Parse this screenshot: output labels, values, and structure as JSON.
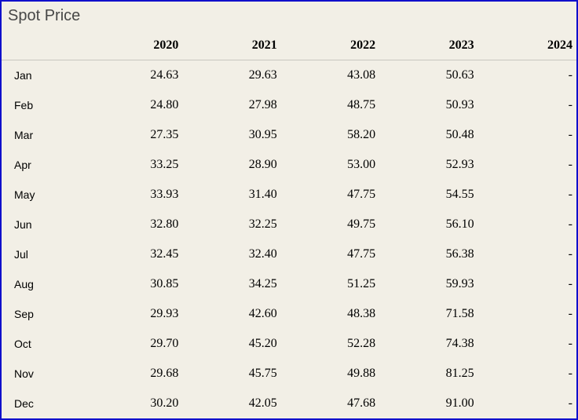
{
  "title": "Spot Price",
  "colors": {
    "border": "#0f0fcb",
    "background": "#f2efe6",
    "title_text": "#474747",
    "separator": "#c8c6bf",
    "cell_text": "#000000"
  },
  "table": {
    "columns": [
      "",
      "2020",
      "2021",
      "2022",
      "2023",
      "2024"
    ],
    "rows": [
      {
        "month": "Jan",
        "values": [
          "24.63",
          "29.63",
          "43.08",
          "50.63",
          "-"
        ]
      },
      {
        "month": "Feb",
        "values": [
          "24.80",
          "27.98",
          "48.75",
          "50.93",
          "-"
        ]
      },
      {
        "month": "Mar",
        "values": [
          "27.35",
          "30.95",
          "58.20",
          "50.48",
          "-"
        ]
      },
      {
        "month": "Apr",
        "values": [
          "33.25",
          "28.90",
          "53.00",
          "52.93",
          "-"
        ]
      },
      {
        "month": "May",
        "values": [
          "33.93",
          "31.40",
          "47.75",
          "54.55",
          "-"
        ]
      },
      {
        "month": "Jun",
        "values": [
          "32.80",
          "32.25",
          "49.75",
          "56.10",
          "-"
        ]
      },
      {
        "month": "Jul",
        "values": [
          "32.45",
          "32.40",
          "47.75",
          "56.38",
          "-"
        ]
      },
      {
        "month": "Aug",
        "values": [
          "30.85",
          "34.25",
          "51.25",
          "59.93",
          "-"
        ]
      },
      {
        "month": "Sep",
        "values": [
          "29.93",
          "42.60",
          "48.38",
          "71.58",
          "-"
        ]
      },
      {
        "month": "Oct",
        "values": [
          "29.70",
          "45.20",
          "52.28",
          "74.38",
          "-"
        ]
      },
      {
        "month": "Nov",
        "values": [
          "29.68",
          "45.75",
          "49.88",
          "81.25",
          "-"
        ]
      },
      {
        "month": "Dec",
        "values": [
          "30.20",
          "42.05",
          "47.68",
          "91.00",
          "-"
        ]
      }
    ]
  },
  "chart_data": {
    "type": "table",
    "title": "Spot Price",
    "categories": [
      "Jan",
      "Feb",
      "Mar",
      "Apr",
      "May",
      "Jun",
      "Jul",
      "Aug",
      "Sep",
      "Oct",
      "Nov",
      "Dec"
    ],
    "series": [
      {
        "name": "2020",
        "values": [
          24.63,
          24.8,
          27.35,
          33.25,
          33.93,
          32.8,
          32.45,
          30.85,
          29.93,
          29.7,
          29.68,
          30.2
        ]
      },
      {
        "name": "2021",
        "values": [
          29.63,
          27.98,
          30.95,
          28.9,
          31.4,
          32.25,
          32.4,
          34.25,
          42.6,
          45.2,
          45.75,
          42.05
        ]
      },
      {
        "name": "2022",
        "values": [
          43.08,
          48.75,
          58.2,
          53.0,
          47.75,
          49.75,
          47.75,
          51.25,
          48.38,
          52.28,
          49.88,
          47.68
        ]
      },
      {
        "name": "2023",
        "values": [
          50.63,
          50.93,
          50.48,
          52.93,
          54.55,
          56.1,
          56.38,
          59.93,
          71.58,
          74.38,
          81.25,
          91.0
        ]
      },
      {
        "name": "2024",
        "values": [
          null,
          null,
          null,
          null,
          null,
          null,
          null,
          null,
          null,
          null,
          null,
          null
        ]
      }
    ],
    "missing_value_display": "-",
    "legend_position": "none",
    "grid": "header-separator-only"
  }
}
